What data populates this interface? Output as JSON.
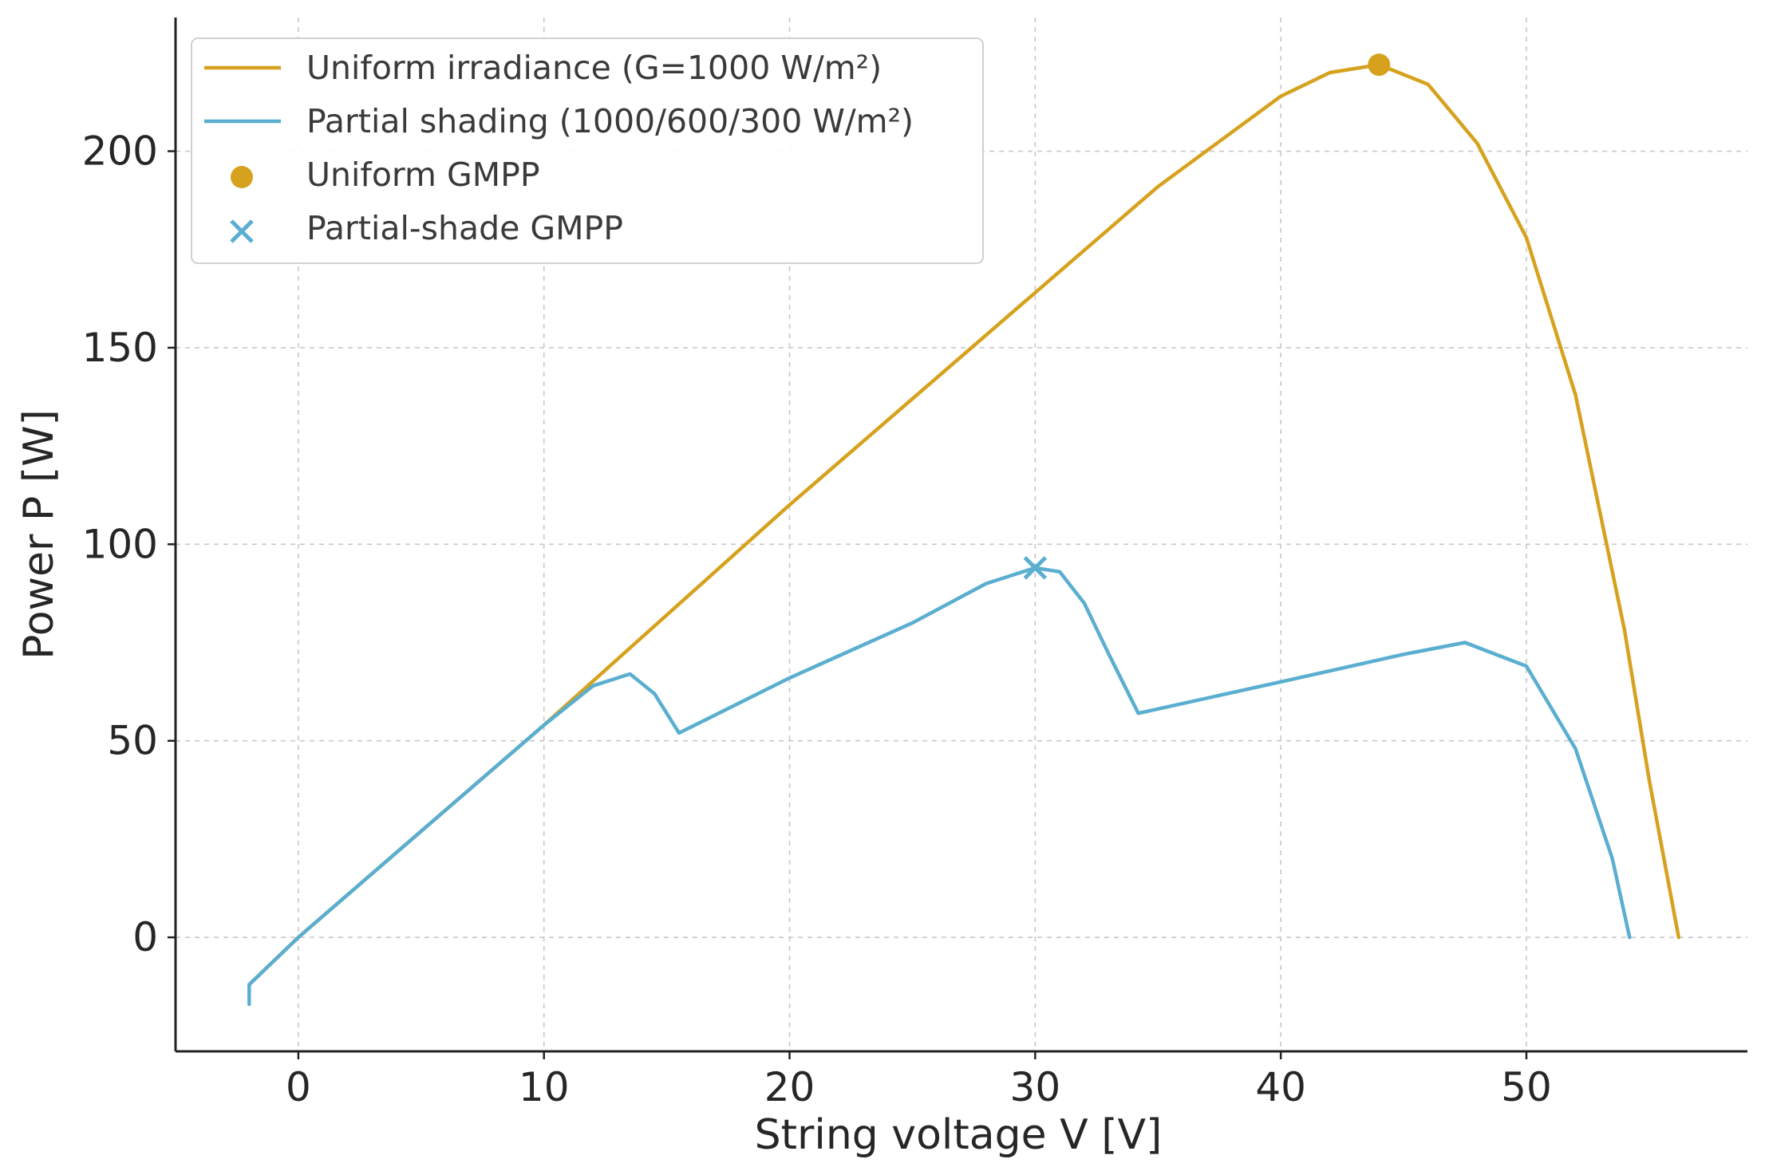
{
  "chart_data": {
    "type": "line",
    "title": "",
    "xlabel": "String voltage V [V]",
    "ylabel": "Power P [W]",
    "xlim": [
      -5,
      59
    ],
    "ylim": [
      -29,
      234
    ],
    "xticks": [
      0,
      10,
      20,
      30,
      40,
      50
    ],
    "yticks": [
      0,
      50,
      100,
      150,
      200
    ],
    "grid": true,
    "legend_position": "top-left",
    "colors": {
      "uniform": "#d6a21e",
      "partial": "#5aaed0",
      "axis": "#222222",
      "grid": "#c8c8c8"
    },
    "series": [
      {
        "name": "Uniform irradiance (G=1000 W/m²)",
        "key": "uniform",
        "x": [
          -2,
          0,
          5,
          10,
          15,
          20,
          25,
          30,
          35,
          40,
          42,
          44,
          46,
          48,
          50,
          52,
          54,
          55,
          56.2
        ],
        "y": [
          -12,
          0,
          27,
          54,
          82,
          110,
          137,
          164,
          191,
          214,
          220,
          222,
          217,
          202,
          178,
          138,
          78,
          40,
          0
        ]
      },
      {
        "name": "Partial shading (1000/600/300 W/m²)",
        "key": "partial",
        "x": [
          -2,
          -2,
          0,
          5,
          10,
          12,
          13.5,
          14.5,
          15.5,
          20,
          25,
          28,
          30,
          31,
          32,
          33,
          34.2,
          40,
          45,
          47.5,
          50,
          52,
          53.5,
          54.2
        ],
        "y": [
          -17,
          -12,
          0,
          27,
          54,
          64,
          67,
          62,
          52,
          66,
          80,
          90,
          94,
          93,
          85,
          72,
          57,
          65,
          72,
          75,
          69,
          48,
          20,
          0
        ]
      }
    ],
    "markers": [
      {
        "name": "Uniform GMPP",
        "key": "uniform",
        "shape": "circle",
        "x": 44,
        "y": 222
      },
      {
        "name": "Partial-shade GMPP",
        "key": "partial",
        "shape": "x",
        "x": 30,
        "y": 94
      }
    ]
  }
}
